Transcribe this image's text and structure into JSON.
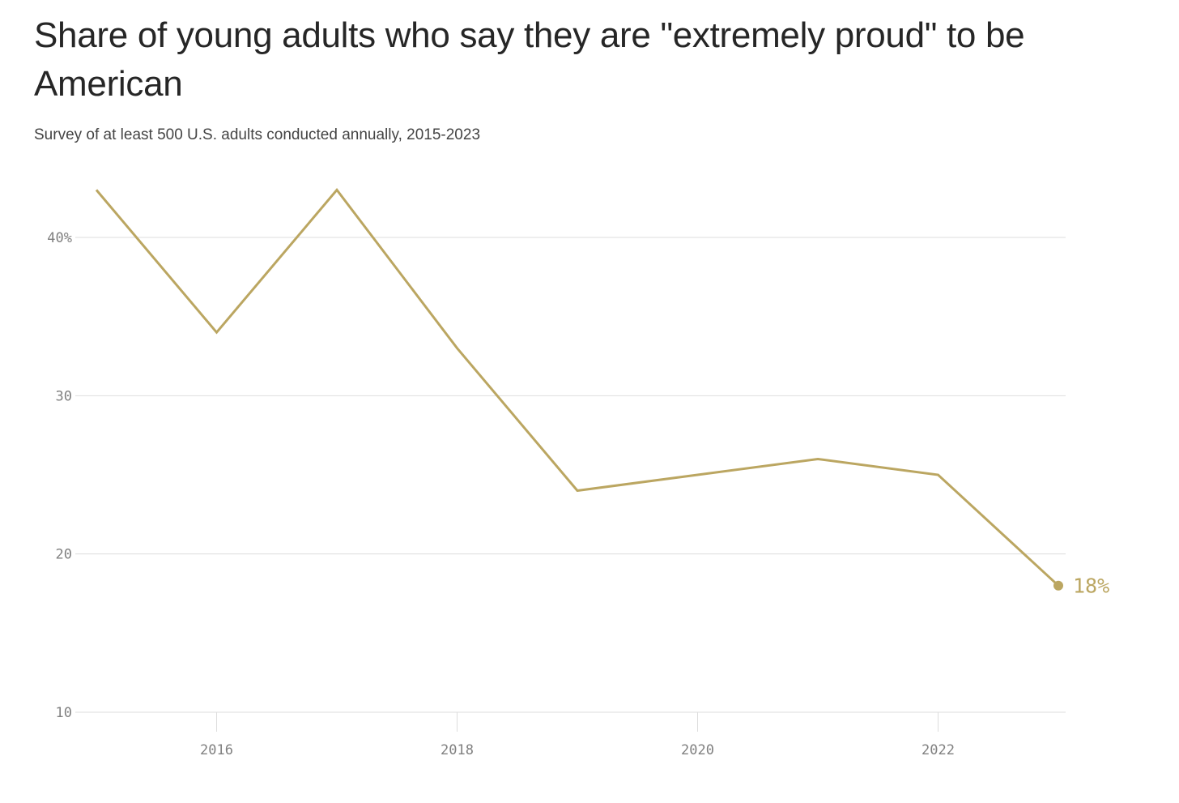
{
  "title": "Share of young adults who say they are \"extremely proud\" to be American",
  "subtitle": "Survey of at least 500 U.S. adults conducted annually, 2015-2023",
  "chart_data": {
    "type": "line",
    "title": "Share of young adults who say they are \"extremely proud\" to be American",
    "subtitle": "Survey of at least 500 U.S. adults conducted annually, 2015-2023",
    "xlabel": "",
    "ylabel": "",
    "x": [
      2015,
      2016,
      2017,
      2018,
      2019,
      2020,
      2021,
      2022,
      2023
    ],
    "series": [
      {
        "values": [
          43,
          34,
          43,
          33,
          24,
          25,
          26,
          25,
          18
        ],
        "color": "#bba661"
      }
    ],
    "xlim": [
      2015,
      2023
    ],
    "ylim": [
      10,
      43
    ],
    "x_ticks": [
      2016,
      2018,
      2020,
      2022
    ],
    "x_tick_labels": [
      "2016",
      "2018",
      "2020",
      "2022"
    ],
    "y_ticks": [
      10,
      20,
      30,
      40
    ],
    "y_tick_labels": [
      "10",
      "20",
      "30",
      "40%"
    ],
    "grid": "horizontal",
    "end_label": "18%",
    "colors": {
      "line": "#bba661",
      "grid": "#dddddd",
      "tick_text": "#808080",
      "title": "#262626",
      "subtitle": "#444444"
    }
  }
}
